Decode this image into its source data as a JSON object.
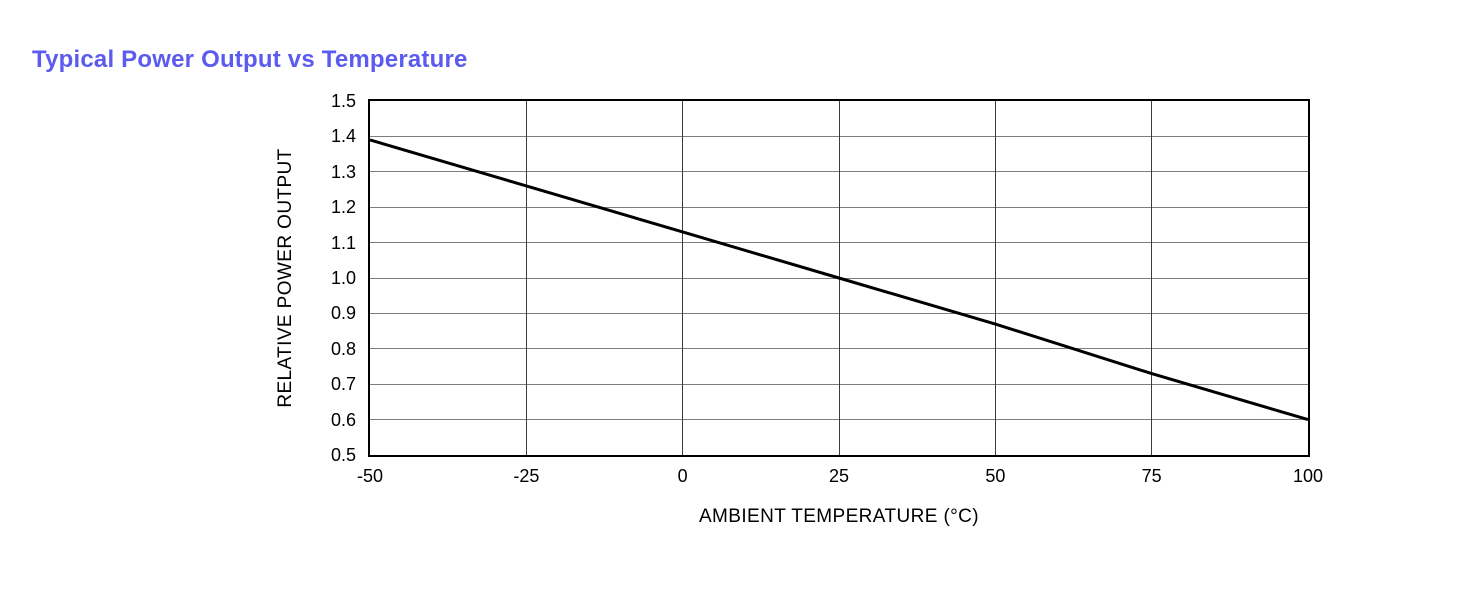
{
  "page": {
    "title": "Typical Power Output vs Temperature",
    "title_color": "#5B5BF0",
    "background_color": "#ffffff"
  },
  "chart_data": {
    "type": "line",
    "title": "Typical Power Output vs Temperature",
    "xlabel": "AMBIENT TEMPERATURE (°C)",
    "ylabel": "RELATIVE POWER OUTPUT",
    "x": [
      -50,
      -25,
      0,
      25,
      50,
      75,
      100
    ],
    "series": [
      {
        "name": "relative-power-output",
        "values": [
          1.39,
          1.26,
          1.13,
          1.0,
          0.87,
          0.73,
          0.6
        ],
        "color": "#000000",
        "stroke_width": 3
      }
    ],
    "xlim": [
      -50,
      100
    ],
    "ylim": [
      0.5,
      1.5
    ],
    "x_ticks": [
      -50,
      -25,
      0,
      25,
      50,
      75,
      100
    ],
    "x_tick_labels": [
      "-50",
      "-25",
      "0",
      "25",
      "50",
      "75",
      "100"
    ],
    "y_ticks": [
      0.5,
      0.6,
      0.7,
      0.8,
      0.9,
      1.0,
      1.1,
      1.2,
      1.3,
      1.4,
      1.5
    ],
    "y_tick_labels": [
      "0.5",
      "0.6",
      "0.7",
      "0.8",
      "0.9",
      "1.0",
      "1.1",
      "1.2",
      "1.3",
      "1.4",
      "1.5"
    ],
    "grid": true,
    "h_grid_color": "#7d7d7d",
    "v_grid_color": "#3c3c3c",
    "border_color": "#000000",
    "legend": "none"
  }
}
